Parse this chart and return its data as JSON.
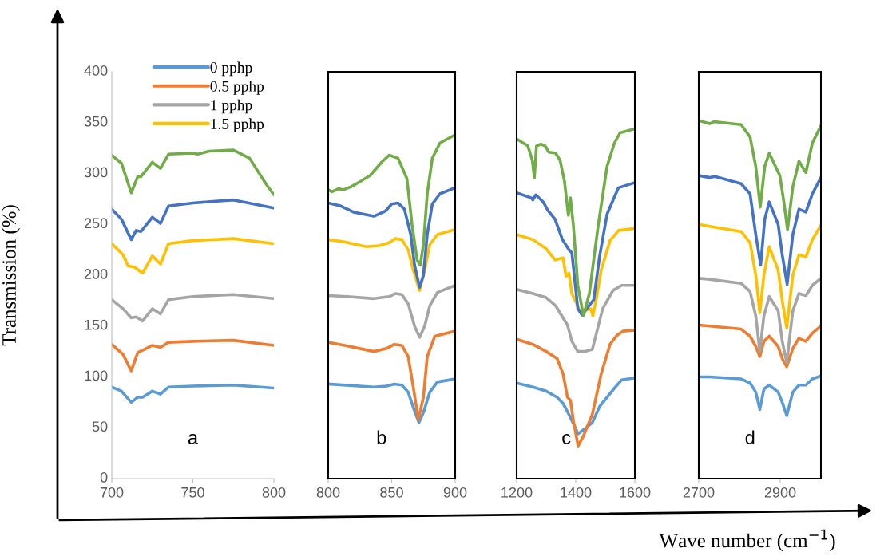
{
  "chart_data": [
    {
      "type": "line",
      "ylabel": "Transmission (%)",
      "xlim": [
        700,
        800
      ],
      "xticks": [
        700,
        750,
        800
      ],
      "ylim": [
        0,
        400
      ],
      "yticks": [
        0,
        50,
        100,
        150,
        200,
        250,
        300,
        350,
        400
      ],
      "grid": false,
      "legend": "top",
      "annotations": [
        "a"
      ],
      "series": [
        {
          "name": "0 pphp",
          "color": "#5b9bd5",
          "x": [
            700,
            706,
            712,
            716,
            719,
            725,
            730,
            735,
            750,
            775,
            800
          ],
          "values": [
            90,
            86,
            75,
            80,
            80,
            86,
            83,
            90,
            91,
            92,
            89
          ]
        },
        {
          "name": "0.5 pphp",
          "color": "#ed7d31",
          "x": [
            700,
            707,
            712,
            716,
            720,
            725,
            730,
            735,
            750,
            775,
            800
          ],
          "values": [
            132,
            122,
            106,
            124,
            127,
            131,
            129,
            134,
            135,
            136,
            131
          ]
        },
        {
          "name": "1 pphp",
          "color": "#a5a5a5",
          "x": [
            700,
            707,
            712,
            715,
            719,
            725,
            730,
            735,
            750,
            775,
            800
          ],
          "values": [
            176,
            167,
            158,
            159,
            155,
            167,
            162,
            176,
            179,
            181,
            177
          ]
        },
        {
          "name": "1.5 pphp",
          "color": "#ffc000",
          "x": [
            700,
            707,
            710,
            714,
            719,
            725,
            730,
            735,
            750,
            775,
            800
          ],
          "values": [
            231,
            220,
            209,
            208,
            202,
            219,
            211,
            231,
            234,
            236,
            231
          ]
        },
        {
          "color": "#4472c4",
          "x": [
            700,
            706,
            712,
            715,
            718,
            725,
            730,
            735,
            750,
            775,
            800
          ],
          "values": [
            265,
            255,
            235,
            244,
            243,
            257,
            251,
            268,
            271,
            274,
            266
          ]
        },
        {
          "color": "#70ad47",
          "x": [
            700,
            706,
            712,
            716,
            718,
            725,
            730,
            735,
            750,
            753,
            760,
            775,
            785,
            795,
            800
          ],
          "values": [
            318,
            310,
            281,
            297,
            297,
            311,
            305,
            319,
            320,
            319,
            322,
            323,
            315,
            290,
            279
          ]
        }
      ]
    },
    {
      "type": "line",
      "xlim": [
        800,
        900
      ],
      "xticks": [
        800,
        850,
        900
      ],
      "ylim": [
        0,
        400
      ],
      "tick_labels": "x",
      "grid": false,
      "annotations": [
        "b"
      ],
      "series": [
        {
          "color": "#5b9bd5",
          "x": [
            800,
            836,
            846,
            852,
            858,
            863,
            867,
            871.5,
            875,
            880,
            886,
            900
          ],
          "values": [
            93,
            90,
            91,
            93,
            92,
            85,
            70,
            55,
            65,
            85,
            95,
            98
          ]
        },
        {
          "color": "#ed7d31",
          "x": [
            800,
            813,
            836,
            846,
            852,
            858,
            863,
            867,
            871,
            875,
            878,
            884,
            900
          ],
          "values": [
            134,
            131,
            125,
            128,
            132,
            131,
            120,
            90,
            58,
            80,
            120,
            140,
            145
          ]
        },
        {
          "color": "#a5a5a5",
          "x": [
            800,
            815,
            836,
            848,
            853,
            858,
            863,
            868,
            872,
            876,
            880,
            886,
            900
          ],
          "values": [
            180,
            179,
            177,
            179,
            182,
            181,
            172,
            150,
            139,
            150,
            170,
            183,
            190
          ]
        },
        {
          "color": "#ffc000",
          "x": [
            800,
            812,
            830,
            840,
            848,
            853,
            858,
            863,
            867,
            872,
            876,
            880,
            886,
            900
          ],
          "values": [
            235,
            233,
            228,
            229,
            232,
            236,
            235,
            225,
            205,
            185,
            205,
            230,
            240,
            245
          ]
        },
        {
          "color": "#4472c4",
          "x": [
            800,
            810,
            820,
            836,
            845,
            850,
            855,
            860,
            865,
            868,
            872,
            875,
            878,
            882,
            888,
            900
          ],
          "values": [
            271,
            268,
            262,
            258,
            263,
            270,
            271,
            265,
            240,
            210,
            188,
            200,
            240,
            270,
            280,
            286
          ]
        },
        {
          "color": "#70ad47",
          "x": [
            800,
            803,
            808,
            812,
            818,
            825,
            833,
            842,
            848,
            855,
            862,
            866,
            870,
            872.5,
            875,
            878,
            882,
            888,
            900
          ],
          "values": [
            284,
            282,
            285,
            284,
            287,
            292,
            298,
            311,
            318,
            315,
            295,
            250,
            215,
            210,
            230,
            280,
            315,
            330,
            338
          ]
        }
      ]
    },
    {
      "type": "line",
      "xlim": [
        1200,
        1600
      ],
      "xticks": [
        1200,
        1400,
        1600
      ],
      "ylim": [
        0,
        400
      ],
      "tick_labels": "x",
      "grid": false,
      "annotations": [
        "c"
      ],
      "series": [
        {
          "color": "#5b9bd5",
          "x": [
            1200,
            1255,
            1300,
            1337,
            1357,
            1377,
            1392,
            1408,
            1431,
            1456,
            1481,
            1506,
            1531,
            1555,
            1600
          ],
          "values": [
            94,
            90,
            86,
            80,
            74,
            63,
            54,
            44,
            49,
            55,
            71,
            80,
            89,
            97,
            99
          ]
        },
        {
          "color": "#ed7d31",
          "x": [
            1200,
            1255,
            1300,
            1337,
            1357,
            1372,
            1382,
            1392,
            1408,
            1426,
            1456,
            1486,
            1516,
            1540,
            1560,
            1600
          ],
          "values": [
            137,
            132,
            125,
            118,
            103,
            80,
            77,
            57,
            32,
            42,
            63,
            103,
            132,
            141,
            145,
            146
          ]
        },
        {
          "color": "#a5a5a5",
          "x": [
            1200,
            1255,
            1300,
            1332,
            1357,
            1372,
            1387,
            1407,
            1431,
            1456,
            1471,
            1491,
            1526,
            1555,
            1600
          ],
          "values": [
            186,
            182,
            178,
            170,
            158,
            151,
            135,
            125,
            125,
            127,
            144,
            167,
            185,
            190,
            190
          ]
        },
        {
          "color": "#ffc000",
          "x": [
            1200,
            1255,
            1300,
            1330,
            1357,
            1367,
            1377,
            1387,
            1416,
            1451,
            1458,
            1471,
            1486,
            1516,
            1545,
            1600
          ],
          "values": [
            240,
            235,
            226,
            215,
            217,
            199,
            202,
            182,
            164,
            167,
            160,
            179,
            205,
            234,
            244,
            246
          ]
        },
        {
          "color": "#4472c4",
          "x": [
            1200,
            1250,
            1255,
            1265,
            1290,
            1305,
            1330,
            1355,
            1377,
            1387,
            1392,
            1407,
            1421,
            1461,
            1481,
            1506,
            1531,
            1545,
            1600
          ],
          "values": [
            281,
            276,
            274,
            279,
            272,
            264,
            255,
            235,
            225,
            222,
            208,
            167,
            161,
            176,
            219,
            260,
            277,
            286,
            291
          ]
        },
        {
          "color": "#70ad47",
          "x": [
            1200,
            1238,
            1253,
            1260,
            1267,
            1282,
            1297,
            1309,
            1332,
            1347,
            1362,
            1375,
            1382,
            1392,
            1407,
            1426,
            1446,
            1476,
            1506,
            1531,
            1550,
            1600
          ],
          "values": [
            334,
            327,
            313,
            296,
            327,
            329,
            327,
            321,
            320,
            313,
            292,
            259,
            276,
            249,
            190,
            160,
            182,
            249,
            307,
            330,
            340,
            344
          ]
        }
      ]
    },
    {
      "type": "line",
      "xlabel": "Wave number (cm$^{−1}$)",
      "xlim": [
        2700,
        3000
      ],
      "xticks": [
        2700,
        2900
      ],
      "ylim": [
        0,
        400
      ],
      "tick_labels": "x",
      "grid": false,
      "annotations": [
        "d"
      ],
      "series": [
        {
          "color": "#5b9bd5",
          "x": [
            2700,
            2727,
            2804,
            2826,
            2840,
            2850,
            2860,
            2873,
            2895,
            2905,
            2916,
            2931,
            2946,
            2963,
            2979,
            3000
          ],
          "values": [
            100,
            100,
            98,
            94,
            85,
            68,
            88,
            92,
            85,
            75,
            62,
            85,
            92,
            92,
            98,
            101
          ]
        },
        {
          "color": "#ed7d31",
          "x": [
            2700,
            2727,
            2804,
            2826,
            2840,
            2850,
            2860,
            2873,
            2895,
            2905,
            2916,
            2931,
            2946,
            2963,
            2979,
            3000
          ],
          "values": [
            151,
            150,
            147,
            140,
            130,
            120,
            135,
            140,
            130,
            118,
            110,
            128,
            138,
            135,
            143,
            150
          ]
        },
        {
          "color": "#a5a5a5",
          "x": [
            2700,
            2727,
            2804,
            2826,
            2840,
            2850,
            2860,
            2873,
            2895,
            2905,
            2916,
            2931,
            2946,
            2963,
            2979,
            3000
          ],
          "values": [
            197,
            196,
            192,
            184,
            160,
            125,
            160,
            179,
            165,
            135,
            114,
            165,
            182,
            180,
            190,
            197
          ]
        },
        {
          "color": "#ffc000",
          "x": [
            2700,
            2727,
            2804,
            2826,
            2840,
            2850,
            2860,
            2873,
            2895,
            2905,
            2916,
            2931,
            2946,
            2963,
            2979,
            3000
          ],
          "values": [
            250,
            248,
            243,
            232,
            200,
            163,
            200,
            228,
            205,
            175,
            148,
            200,
            220,
            218,
            235,
            249
          ]
        },
        {
          "color": "#4472c4",
          "x": [
            2700,
            2727,
            2740,
            2804,
            2826,
            2840,
            2852,
            2862,
            2873,
            2895,
            2905,
            2917,
            2931,
            2946,
            2963,
            2979,
            3000
          ],
          "values": [
            298,
            296,
            297,
            290,
            280,
            240,
            210,
            255,
            272,
            250,
            220,
            191,
            240,
            265,
            262,
            280,
            296
          ]
        },
        {
          "color": "#70ad47",
          "x": [
            2700,
            2727,
            2738,
            2804,
            2826,
            2840,
            2851,
            2862,
            2873,
            2899,
            2909,
            2918,
            2931,
            2946,
            2963,
            2979,
            3000
          ],
          "values": [
            352,
            349,
            351,
            348,
            336,
            307,
            267,
            307,
            320,
            298,
            272,
            245,
            287,
            312,
            301,
            330,
            347
          ]
        }
      ]
    }
  ]
}
